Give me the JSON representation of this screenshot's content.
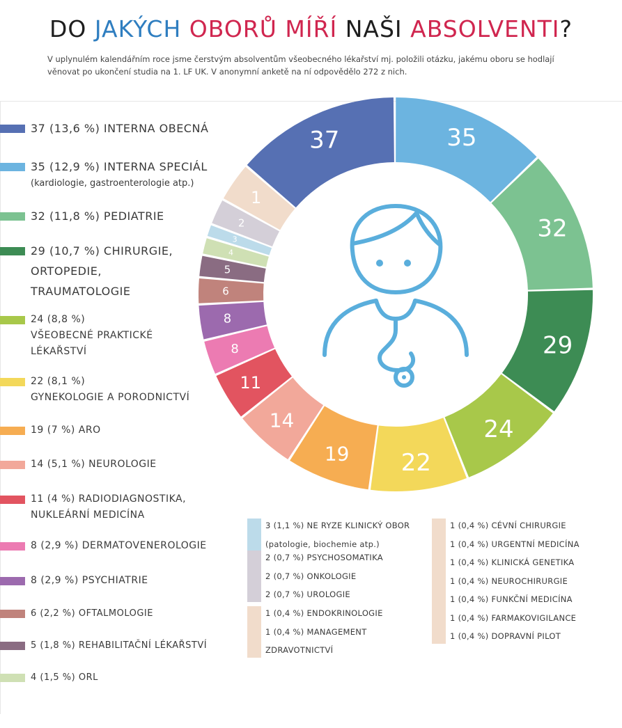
{
  "title": {
    "part1": "DO ",
    "part2": "JAKÝCH",
    "part3": " ",
    "part4": "OBORŮ MÍŘÍ",
    "part5": " NAŠI ",
    "part6": "ABSOLVENTI",
    "part7": "?"
  },
  "intro": "V uplynulém kalendářním roce jsme čerstvým absolventům všeobecného lékařství mj. položili otázku, jakému oboru se hodlají věnovat po ukončení studia na 1. LF UK. V anonymní anketě na ní odpovědělo 272 z nich.",
  "chart_data": {
    "type": "pie",
    "total_respondents": 272,
    "slices": [
      {
        "value": 37,
        "label": "37",
        "color": "#5670b3",
        "text_color": "#ffffff"
      },
      {
        "value": 35,
        "label": "35",
        "color": "#6cb4e0",
        "text_color": "#ffffff"
      },
      {
        "value": 32,
        "label": "32",
        "color": "#7cc291",
        "text_color": "#ffffff"
      },
      {
        "value": 29,
        "label": "29",
        "color": "#3d8c54",
        "text_color": "#ffffff"
      },
      {
        "value": 24,
        "label": "24",
        "color": "#a8c84a",
        "text_color": "#ffffff"
      },
      {
        "value": 22,
        "label": "22",
        "color": "#f3d85a",
        "text_color": "#ffffff"
      },
      {
        "value": 19,
        "label": "19",
        "color": "#f6ad52",
        "text_color": "#ffffff"
      },
      {
        "value": 14,
        "label": "14",
        "color": "#f2a89a",
        "text_color": "#ffffff"
      },
      {
        "value": 11,
        "label": "11",
        "color": "#e25460",
        "text_color": "#ffffff"
      },
      {
        "value": 8,
        "label": "8",
        "color": "#ec7bb2",
        "text_color": "#ffffff"
      },
      {
        "value": 8,
        "label": "8",
        "color": "#9c6aae",
        "text_color": "#ffffff"
      },
      {
        "value": 6,
        "label": "6",
        "color": "#c0837c",
        "text_color": "#ffffff"
      },
      {
        "value": 5,
        "label": "5",
        "color": "#8a6c82",
        "text_color": "#ffffff"
      },
      {
        "value": 4,
        "label": "4",
        "color": "#cfe0b4",
        "text_color": "#ffffff"
      },
      {
        "value": 3,
        "label": "3",
        "color": "#bcdbea",
        "text_color": "#ffffff"
      },
      {
        "value": 6,
        "label": "2",
        "color": "#d4cfd8",
        "text_color": "#ffffff"
      },
      {
        "value": 9,
        "label": "1",
        "color": "#f1dccb",
        "text_color": "#ffffff"
      }
    ]
  },
  "legend": [
    {
      "color": "#5670b3",
      "size": "big",
      "lines": [
        "37 (13,6 %) INTERNA OBECNÁ"
      ],
      "sub": []
    },
    {
      "color": "#6cb4e0",
      "size": "big",
      "lines": [
        "35 (12,9 %) INTERNA SPECIÁL"
      ],
      "sub": [
        "(kardiologie, gastroenterologie atp.)"
      ]
    },
    {
      "color": "#7cc291",
      "size": "big",
      "lines": [
        "32 (11,8 %) PEDIATRIE"
      ],
      "sub": []
    },
    {
      "color": "#3d8c54",
      "size": "big",
      "lines": [
        "29 (10,7 %) CHIRURGIE,",
        "ORTOPEDIE,",
        "TRAUMATOLOGIE"
      ],
      "sub": []
    },
    {
      "color": "#a8c84a",
      "size": "mid",
      "lines": [
        "24 (8,8 %)",
        "VŠEOBECNÉ PRAKTICKÉ",
        "LÉKAŘSTVÍ"
      ],
      "sub": []
    },
    {
      "color": "#f3d85a",
      "size": "mid",
      "lines": [
        "22 (8,1 %)",
        "GYNEKOLOGIE A PORODNICTVÍ"
      ],
      "sub": []
    },
    {
      "color": "#f6ad52",
      "size": "mid",
      "lines": [
        "19 (7 %) ARO"
      ],
      "sub": []
    },
    {
      "color": "#f2a89a",
      "size": "mid",
      "lines": [
        "14 (5,1 %) NEUROLOGIE"
      ],
      "sub": []
    },
    {
      "color": "#e25460",
      "size": "mid",
      "lines": [
        "11 (4 %) RADIODIAGNOSTIKA,",
        "NUKLEÁRNÍ MEDICÍNA"
      ],
      "sub": []
    },
    {
      "color": "#ec7bb2",
      "size": "mid",
      "lines": [
        "8 (2,9 %) DERMATOVENEROLOGIE"
      ],
      "sub": []
    },
    {
      "color": "#9c6aae",
      "size": "mid",
      "lines": [
        "8 (2,9 %) PSYCHIATRIE"
      ],
      "sub": []
    },
    {
      "color": "#c0837c",
      "size": "small",
      "lines": [
        "6 (2,2 %) OFTALMOLOGIE"
      ],
      "sub": []
    },
    {
      "color": "#8a6c82",
      "size": "small",
      "lines": [
        "5 (1,8 %) REHABILITAČNÍ LÉKAŘSTVÍ"
      ],
      "sub": []
    },
    {
      "color": "#cfe0b4",
      "size": "small",
      "lines": [
        "4 (1,5 %) ORL"
      ],
      "sub": []
    }
  ],
  "small_groups": [
    {
      "color": "#bcdbea",
      "lines": [
        "3 (1,1 %) NE RYZE KLINICKÝ OBOR",
        "(patologie, biochemie atp.)"
      ]
    },
    {
      "color": "#d4cfd8",
      "lines": [
        "2 (0,7 %) PSYCHOSOMATIKA",
        "2 (0,7 %) ONKOLOGIE",
        "2 (0,7 %) UROLOGIE"
      ]
    },
    {
      "color": "#f1dccb",
      "lines": [
        "1 (0,4 %) ENDOKRINOLOGIE",
        "1 (0,4 %) MANAGEMENT",
        "ZDRAVOTNICTVÍ"
      ]
    },
    {
      "color": "#f1dccb",
      "lines": [
        "1 (0,4 %) CÉVNÍ CHIRURGIE",
        "1 (0,4 %) URGENTNÍ MEDICÍNA",
        "1 (0,4 %) KLINICKÁ GENETIKA",
        "1 (0,4 %) NEUROCHIRURGIE",
        "1 (0,4 %) FUNKČNÍ MEDICÍNA",
        "1 (0,4 %) FARMAKOVIGILANCE",
        "1 (0,4 %) DOPRAVNÍ PILOT"
      ]
    }
  ],
  "icons": {
    "center": "doctor-stethoscope-icon",
    "icon_color": "#5aaedc"
  }
}
